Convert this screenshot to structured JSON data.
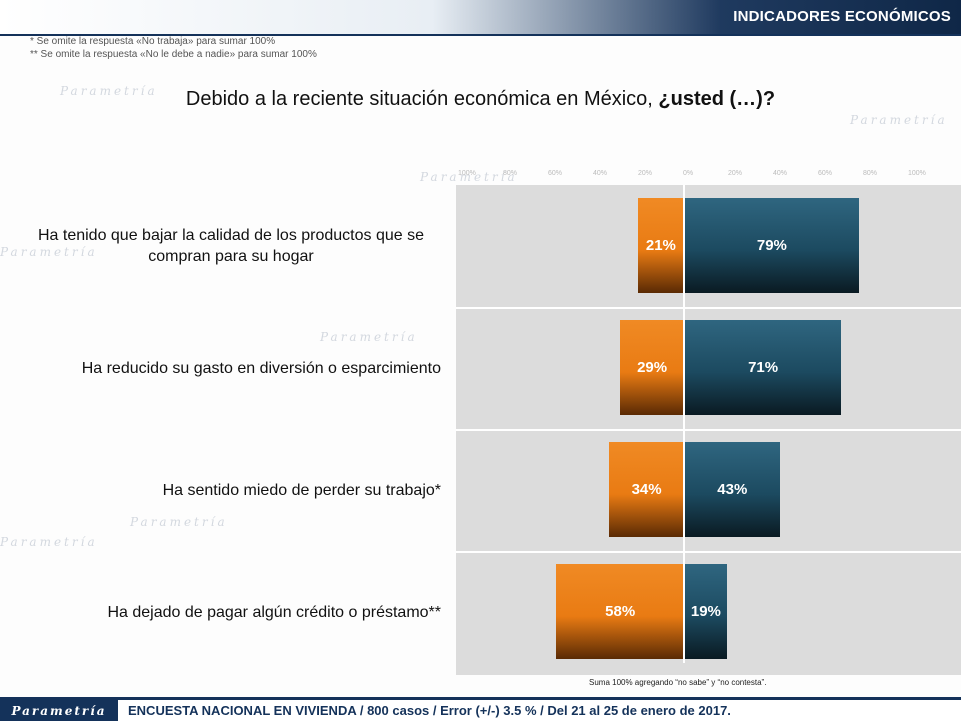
{
  "header": {
    "title": "INDICADORES ECONÓMICOS"
  },
  "notes": [
    "* Se omite la respuesta «No trabaja» para sumar 100%",
    "** Se omite la respuesta «No le debe a nadie» para sumar 100%"
  ],
  "question": {
    "text": "Debido a la reciente situación económica en México, ",
    "bold": "¿usted (…)?"
  },
  "watermark": "Parametría",
  "chart_data": {
    "type": "bar",
    "orientation": "horizontal-diverging",
    "categories": [
      "Ha tenido que bajar la calidad de los productos que se compran para su hogar",
      "Ha reducido su gasto en diversión o esparcimiento",
      "Ha sentido miedo de perder su trabajo*",
      "Ha dejado de pagar algún crédito o préstamo**"
    ],
    "series": [
      {
        "values": [
          21,
          29,
          34,
          58
        ],
        "labels": [
          "21%",
          "29%",
          "34%",
          "58%"
        ],
        "color": "#e97b13",
        "side": "negative"
      },
      {
        "values": [
          79,
          71,
          43,
          19
        ],
        "labels": [
          "79%",
          "71%",
          "43%",
          "19%"
        ],
        "color": "#1c4a60",
        "side": "positive"
      }
    ],
    "xlim": [
      -100,
      100
    ],
    "axis_ticks": [
      "100%",
      "80%",
      "60%",
      "40%",
      "20%",
      "0%",
      "20%",
      "40%",
      "60%",
      "80%",
      "100%"
    ],
    "grid": false,
    "legend": "none"
  },
  "chart_footnote": "Suma 100%  agregando “no sabe” y “no contesta”.",
  "footer": {
    "logo": "Parametría",
    "text": "ENCUESTA NACIONAL EN VIVIENDA / 800 casos / Error (+/-) 3.5 % / Del 21 al 25 de enero de 2017."
  },
  "colors": {
    "header": "#14325a",
    "negative": "#e97b13",
    "positive": "#1c4a60",
    "panel": "#dcdcdc"
  }
}
